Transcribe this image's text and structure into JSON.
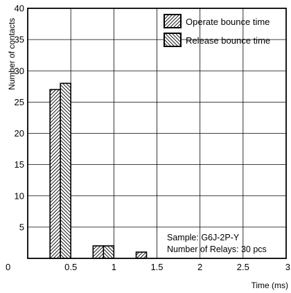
{
  "chart_data": {
    "type": "bar",
    "xlabel": "Time (ms)",
    "ylabel": "Number of contacts",
    "xlim": [
      0,
      3
    ],
    "ylim": [
      0,
      40
    ],
    "x_ticks": [
      "0",
      "0.5",
      "1",
      "1.5",
      "2",
      "2.5",
      "3"
    ],
    "y_ticks": [
      "5",
      "10",
      "15",
      "20",
      "25",
      "30",
      "35",
      "40"
    ],
    "grid": true,
    "legend_position": "top-right",
    "categories": [
      "0.5",
      "1",
      "1.5"
    ],
    "series": [
      {
        "name": "Operate bounce time",
        "pattern": "hatch-forward",
        "values": [
          27,
          2,
          1
        ]
      },
      {
        "name": "Release bounce time",
        "pattern": "hatch-backward",
        "values": [
          28,
          2,
          0
        ]
      }
    ],
    "annotations": [
      "Sample: G6J-2P-Y",
      "Number of Relays: 30 pcs"
    ]
  }
}
